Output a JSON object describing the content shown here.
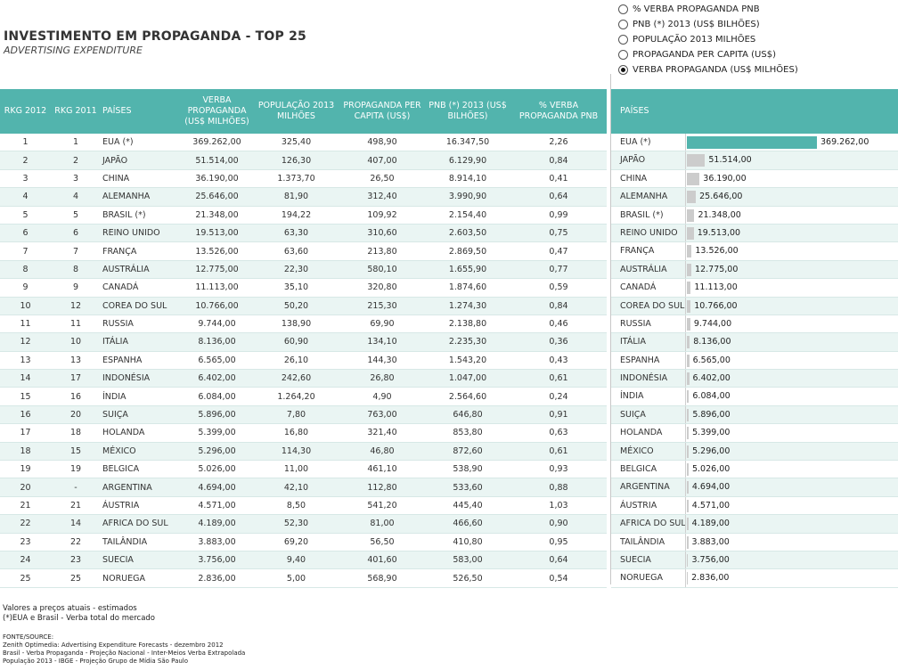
{
  "header": {
    "title": "INVESTIMENTO EM PROPAGANDA - TOP 25",
    "subtitle": "ADVERTISING EXPENDITURE"
  },
  "options": [
    {
      "label": "% VERBA PROPAGANDA PNB",
      "checked": false
    },
    {
      "label": "PNB (*) 2013 (US$ BILHÕES)",
      "checked": false
    },
    {
      "label": "POPULAÇÃO 2013 MILHÕES",
      "checked": false
    },
    {
      "label": "PROPAGANDA PER CAPITA (US$)",
      "checked": false
    },
    {
      "label": "VERBA PROPAGANDA (US$ MILHÕES)",
      "checked": true
    }
  ],
  "table": {
    "headers": {
      "rkg2012": "RKG 2012",
      "rkg2011": "RKG 2011",
      "paises": "PAÍSES",
      "verba": "VERBA PROPAGANDA (US$ MILHÕES)",
      "populacao": "POPULAÇÃO 2013 MILHÕES",
      "percapita": "PROPAGANDA PER CAPITA (US$)",
      "pnb": "PNB (*) 2013 (US$ BILHÕES)",
      "pct": "% VERBA PROPAGANDA PNB"
    },
    "rows": [
      [
        "1",
        "1",
        "EUA (*)",
        "369.262,00",
        "325,40",
        "498,90",
        "16.347,50",
        "2,26"
      ],
      [
        "2",
        "2",
        "JAPÃO",
        "51.514,00",
        "126,30",
        "407,00",
        "6.129,90",
        "0,84"
      ],
      [
        "3",
        "3",
        "CHINA",
        "36.190,00",
        "1.373,70",
        "26,50",
        "8.914,10",
        "0,41"
      ],
      [
        "4",
        "4",
        "ALEMANHA",
        "25.646,00",
        "81,90",
        "312,40",
        "3.990,90",
        "0,64"
      ],
      [
        "5",
        "5",
        "BRASIL (*)",
        "21.348,00",
        "194,22",
        "109,92",
        "2.154,40",
        "0,99"
      ],
      [
        "6",
        "6",
        "REINO UNIDO",
        "19.513,00",
        "63,30",
        "310,60",
        "2.603,50",
        "0,75"
      ],
      [
        "7",
        "7",
        "FRANÇA",
        "13.526,00",
        "63,60",
        "213,80",
        "2.869,50",
        "0,47"
      ],
      [
        "8",
        "8",
        "AUSTRÁLIA",
        "12.775,00",
        "22,30",
        "580,10",
        "1.655,90",
        "0,77"
      ],
      [
        "9",
        "9",
        "CANADÁ",
        "11.113,00",
        "35,10",
        "320,80",
        "1.874,60",
        "0,59"
      ],
      [
        "10",
        "12",
        "COREA DO SUL",
        "10.766,00",
        "50,20",
        "215,30",
        "1.274,30",
        "0,84"
      ],
      [
        "11",
        "11",
        "RUSSIA",
        "9.744,00",
        "138,90",
        "69,90",
        "2.138,80",
        "0,46"
      ],
      [
        "12",
        "10",
        "ITÁLIA",
        "8.136,00",
        "60,90",
        "134,10",
        "2.235,30",
        "0,36"
      ],
      [
        "13",
        "13",
        "ESPANHA",
        "6.565,00",
        "26,10",
        "144,30",
        "1.543,20",
        "0,43"
      ],
      [
        "14",
        "17",
        "INDONÉSIA",
        "6.402,00",
        "242,60",
        "26,80",
        "1.047,00",
        "0,61"
      ],
      [
        "15",
        "16",
        "ÍNDIA",
        "6.084,00",
        "1.264,20",
        "4,90",
        "2.564,60",
        "0,24"
      ],
      [
        "16",
        "20",
        "SUIÇA",
        "5.896,00",
        "7,80",
        "763,00",
        "646,80",
        "0,91"
      ],
      [
        "17",
        "18",
        "HOLANDA",
        "5.399,00",
        "16,80",
        "321,40",
        "853,80",
        "0,63"
      ],
      [
        "18",
        "15",
        "MÉXICO",
        "5.296,00",
        "114,30",
        "46,80",
        "872,60",
        "0,61"
      ],
      [
        "19",
        "19",
        "BELGICA",
        "5.026,00",
        "11,00",
        "461,10",
        "538,90",
        "0,93"
      ],
      [
        "20",
        "-",
        "ARGENTINA",
        "4.694,00",
        "42,10",
        "112,80",
        "533,60",
        "0,88"
      ],
      [
        "21",
        "21",
        "ÁUSTRIA",
        "4.571,00",
        "8,50",
        "541,20",
        "445,40",
        "1,03"
      ],
      [
        "22",
        "14",
        "AFRICA DO SUL",
        "4.189,00",
        "52,30",
        "81,00",
        "466,60",
        "0,90"
      ],
      [
        "23",
        "22",
        "TAILÂNDIA",
        "3.883,00",
        "69,20",
        "56,50",
        "410,80",
        "0,95"
      ],
      [
        "24",
        "23",
        "SUECIA",
        "3.756,00",
        "9,40",
        "401,60",
        "583,00",
        "0,64"
      ],
      [
        "25",
        "25",
        "NORUEGA",
        "2.836,00",
        "5,00",
        "568,90",
        "526,50",
        "0,54"
      ]
    ]
  },
  "chart_data": {
    "type": "bar",
    "orientation": "horizontal",
    "category_header": "PAÍSES",
    "categories": [
      "EUA (*)",
      "JAPÃO",
      "CHINA",
      "ALEMANHA",
      "BRASIL (*)",
      "REINO UNIDO",
      "FRANÇA",
      "AUSTRÁLIA",
      "CANADÁ",
      "COREA DO SUL",
      "RUSSIA",
      "ITÁLIA",
      "ESPANHA",
      "INDONÉSIA",
      "ÍNDIA",
      "SUIÇA",
      "HOLANDA",
      "MÉXICO",
      "BELGICA",
      "ARGENTINA",
      "ÁUSTRIA",
      "AFRICA DO SUL",
      "TAILÂNDIA",
      "SUECIA",
      "NORUEGA"
    ],
    "values": [
      369262,
      51514,
      36190,
      25646,
      21348,
      19513,
      13526,
      12775,
      11113,
      10766,
      9744,
      8136,
      6565,
      6402,
      6084,
      5896,
      5399,
      5296,
      5026,
      4694,
      4571,
      4189,
      3883,
      3756,
      2836
    ],
    "labels": [
      "369.262,00",
      "51.514,00",
      "36.190,00",
      "25.646,00",
      "21.348,00",
      "19.513,00",
      "13.526,00",
      "12.775,00",
      "11.113,00",
      "10.766,00",
      "9.744,00",
      "8.136,00",
      "6.565,00",
      "6.402,00",
      "6.084,00",
      "5.896,00",
      "5.399,00",
      "5.296,00",
      "5.026,00",
      "4.694,00",
      "4.571,00",
      "4.189,00",
      "3.883,00",
      "3.756,00",
      "2.836,00"
    ],
    "colors": {
      "highlight": "#52b4ad",
      "bar": "#cccccc",
      "header": "#52b4ad"
    }
  },
  "footer": {
    "notes": [
      "Valores a preços atuais - estimados",
      "(*)EUA e Brasil - Verba total do mercado"
    ],
    "source_title": "FONTE/SOURCE:",
    "sources": [
      "Zenith Optimedia: Advertising Expenditure Forecasts - dezembro 2012",
      "Brasil - Verba Propaganda - Projeção Nacional - Inter-Meios Verba Extrapolada",
      "População 2013 - IBGE - Projeção Grupo de Mídia São Paulo"
    ]
  }
}
